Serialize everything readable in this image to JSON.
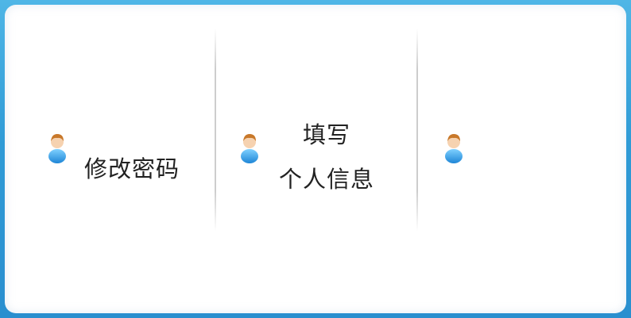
{
  "tiles": [
    {
      "label": "修改密码",
      "icon": "user-icon"
    },
    {
      "label_line1": "填写",
      "label_line2": "个人信息",
      "icon": "user-icon"
    },
    {
      "label": "",
      "icon": "user-icon"
    }
  ],
  "colors": {
    "frame": "#2f9bd6",
    "panel": "#ffffff",
    "text": "#222222",
    "icon_shirt": "#3aa7e8",
    "icon_hair": "#c8782a",
    "icon_face": "#f6d2b0"
  }
}
